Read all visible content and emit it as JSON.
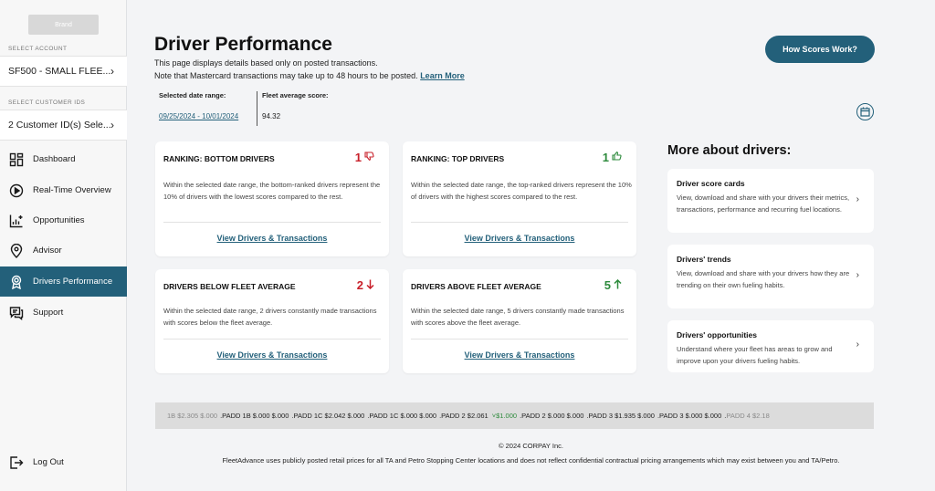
{
  "sidebar": {
    "brand": "Brand",
    "account_label": "SELECT ACCOUNT",
    "account_value": "SF500 - SMALL FLEE...",
    "customer_label": "SELECT CUSTOMER IDS",
    "customer_value": "2 Customer ID(s) Sele...",
    "items": [
      {
        "label": "Dashboard",
        "icon": "dashboard-icon"
      },
      {
        "label": "Real-Time Overview",
        "icon": "play-circle-icon"
      },
      {
        "label": "Opportunities",
        "icon": "chart-plus-icon"
      },
      {
        "label": "Advisor",
        "icon": "location-pin-icon"
      },
      {
        "label": "Drivers Performance",
        "icon": "award-icon",
        "active": true
      },
      {
        "label": "Support",
        "icon": "chat-support-icon"
      }
    ],
    "logout": "Log Out"
  },
  "header": {
    "title": "Driver Performance",
    "subtitle_line1": "This page displays details based only on posted transactions.",
    "subtitle_line2": "Note that Mastercard transactions may take up to 48 hours to be posted.",
    "learn_more": "Learn More",
    "how_scores": "How Scores Work?"
  },
  "filters": {
    "date_range_label": "Selected date range:",
    "date_range_value": "09/25/2024 - 10/01/2024",
    "fleet_avg_label": "Fleet average score:",
    "fleet_avg_value": "94.32"
  },
  "cards": {
    "bottom": {
      "title": "RANKING: BOTTOM DRIVERS",
      "value": "1",
      "desc": "Within the selected date range, the bottom-ranked drivers represent the 10% of drivers with the lowest scores compared to the rest.",
      "link": "View Drivers & Transactions"
    },
    "top": {
      "title": "RANKING: TOP DRIVERS",
      "value": "1",
      "desc": "Within the selected date range, the top-ranked drivers represent the 10% of drivers with the highest scores compared to the rest.",
      "link": "View Drivers & Transactions"
    },
    "below": {
      "title": "DRIVERS BELOW FLEET AVERAGE",
      "value": "2",
      "desc": "Within the selected date range, 2 drivers constantly made transactions with scores below the fleet average.",
      "link": "View Drivers & Transactions"
    },
    "above": {
      "title": "DRIVERS ABOVE FLEET AVERAGE",
      "value": "5",
      "desc": "Within the selected date range, 5 drivers constantly made transactions with scores above the fleet average.",
      "link": "View Drivers & Transactions"
    }
  },
  "more": {
    "title": "More about drivers:",
    "items": [
      {
        "title": "Driver score cards",
        "desc": "View, download and share with your drivers their metrics, transactions, performance and recurring fuel locations."
      },
      {
        "title": "Drivers' trends",
        "desc": "View, download and share with your drivers how they are trending on their own fueling habits."
      },
      {
        "title": "Drivers' opportunities",
        "desc": "Understand where your fleet has areas to grow and improve upon your drivers fueling habits."
      }
    ]
  },
  "ticker": {
    "start": "1B $2.305 $.000",
    "items": [
      "PADD 1B $.000 $.000",
      "PADD 1C $2.042 $.000",
      "PADD 1C $.000 $.000",
      "PADD 2 $2.061"
    ],
    "up_value": "$1.000",
    "items2": [
      "PADD 2 $.000 $.000",
      "PADD 3 $1.935 $.000",
      "PADD 3 $.000 $.000"
    ],
    "end": "PADD 4 $2.18"
  },
  "footer": {
    "copyright": "© 2024 CORPAY Inc.",
    "disclaimer": "FleetAdvance uses publicly posted retail prices for all TA and Petro Stopping Center locations and does not reflect confidential contractual pricing arrangements which may exist between you and TA/Petro."
  },
  "colors": {
    "accent": "#23607a",
    "negative": "#c8202a",
    "positive": "#2e8b3d"
  }
}
